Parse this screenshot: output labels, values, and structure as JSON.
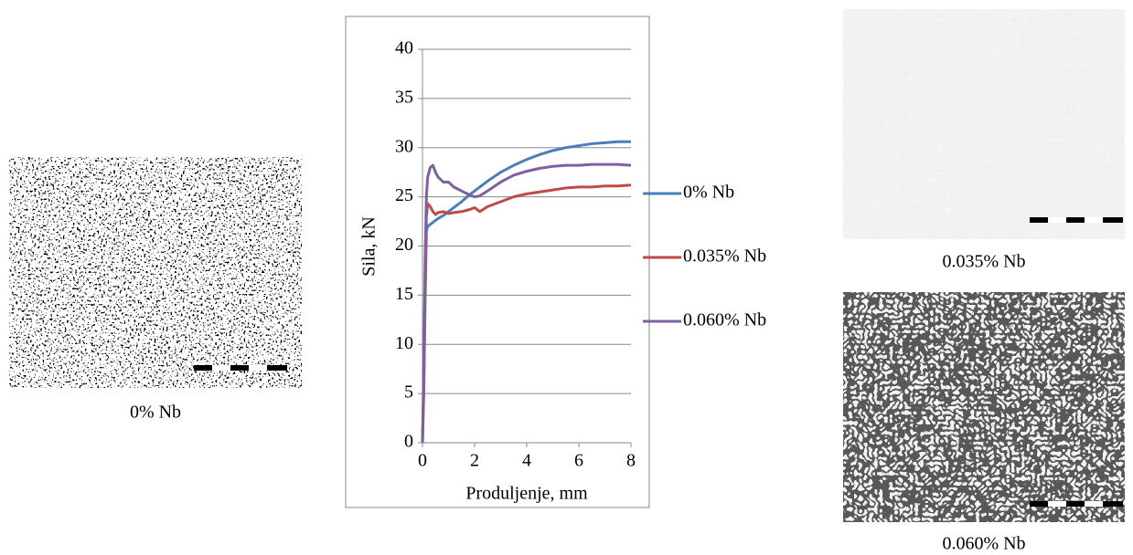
{
  "chart_data": {
    "type": "line",
    "xlabel": "Produljenje, mm",
    "ylabel": "Sila, kN",
    "x": [
      0,
      0.05,
      0.1,
      0.15,
      0.2,
      0.3,
      0.4,
      0.5,
      0.6,
      0.8,
      1,
      1.2,
      1.5,
      1.8,
      2,
      2.2,
      2.5,
      3,
      3.5,
      4,
      4.5,
      5,
      5.5,
      6,
      6.5,
      7,
      7.5,
      8
    ],
    "series": [
      {
        "name": "0% Nb",
        "color": "#4a7ebb",
        "values": [
          0,
          5,
          14,
          21.5,
          22,
          22.2,
          22.4,
          22.6,
          22.8,
          23.1,
          23.5,
          23.9,
          24.5,
          25.2,
          25.6,
          26,
          26.6,
          27.5,
          28.2,
          28.8,
          29.3,
          29.7,
          30,
          30.2,
          30.4,
          30.5,
          30.6,
          30.6
        ]
      },
      {
        "name": "0.035% Nb",
        "color": "#be4b48",
        "values": [
          0,
          6,
          16,
          23,
          24.3,
          24,
          23.5,
          23.2,
          23.4,
          23.5,
          23.3,
          23.4,
          23.5,
          23.7,
          23.9,
          23.5,
          24,
          24.5,
          25,
          25.3,
          25.5,
          25.7,
          25.9,
          26,
          26,
          26.1,
          26.1,
          26.2
        ]
      },
      {
        "name": "0.060% Nb",
        "color": "#7d60a0",
        "values": [
          0,
          8,
          18,
          25,
          27,
          28,
          28.2,
          27.5,
          27,
          26.5,
          26.5,
          26,
          25.6,
          25.2,
          25,
          25.1,
          25.6,
          26.5,
          27.2,
          27.6,
          27.9,
          28.1,
          28.2,
          28.2,
          28.3,
          28.3,
          28.3,
          28.2
        ]
      }
    ],
    "xlim": [
      0,
      8
    ],
    "xticks": [
      0,
      2,
      4,
      6,
      8
    ],
    "ylim": [
      0,
      40
    ],
    "yticks": [
      0,
      5,
      10,
      15,
      20,
      25,
      30,
      35,
      40
    ],
    "grid": true,
    "legend": "right"
  },
  "panels": [
    {
      "caption": "0% Nb"
    },
    {
      "caption": "0.035% Nb"
    },
    {
      "caption": "0.060% Nb"
    }
  ]
}
